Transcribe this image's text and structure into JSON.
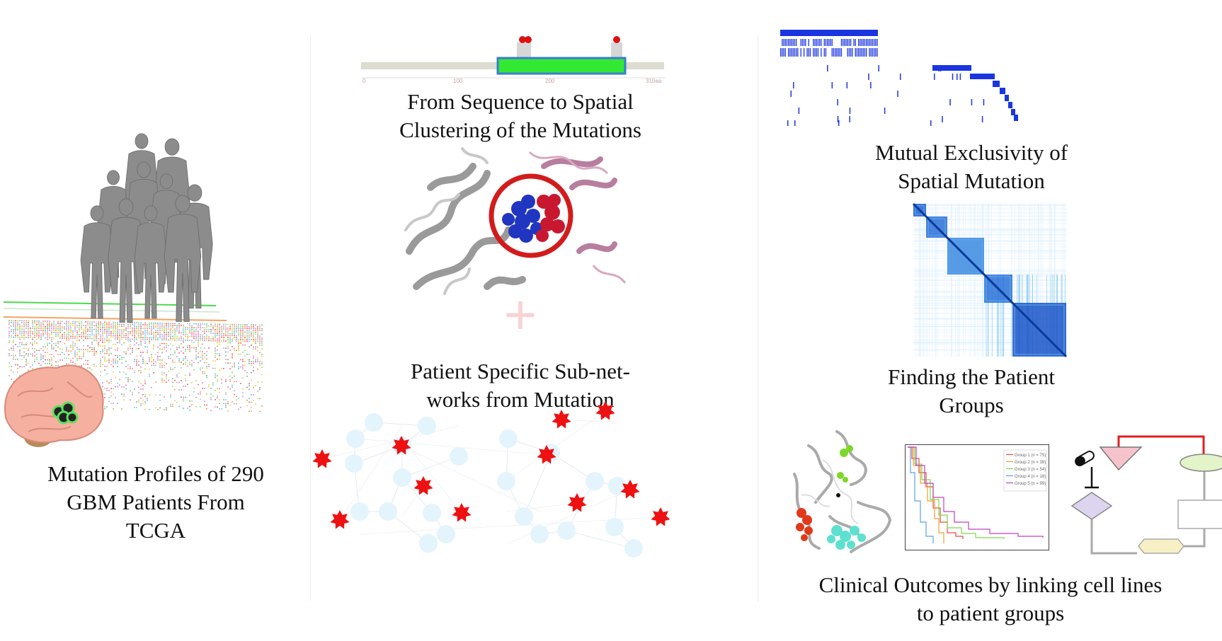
{
  "left_panel": {
    "caption_lines": [
      "Mutation Profiles of 290",
      "GBM Patients From",
      "TCGA"
    ]
  },
  "middle_panel": {
    "top_caption_lines": [
      "From Sequence to Spatial",
      "Clustering of the Mutations"
    ],
    "axis_ticks": [
      "0",
      "100",
      "200",
      "310aa"
    ],
    "plus_symbol": "+",
    "bottom_caption_lines": [
      "Patient Specific Sub-net-",
      "works from Mutation"
    ]
  },
  "right_panel": {
    "caption1_lines": [
      "Mutual Exclusivity of",
      "Spatial Mutation"
    ],
    "caption2_lines": [
      "Finding the Patient",
      "Groups"
    ],
    "km_legend": [
      "Group 1 (n = 75)",
      "Group 2 (n = 39)",
      "Group 3 (n = 54)",
      "Group 4 (n = 18)",
      "Group 5 (n = 99)"
    ],
    "km_colors": [
      "#e64b3c",
      "#f0a030",
      "#7dd84a",
      "#5aa0e8",
      "#c040c0"
    ],
    "caption3_lines": [
      "Clinical Outcomes by linking cell lines",
      "to patient groups"
    ]
  },
  "colors": {
    "domain_fill": "#33e833",
    "domain_border": "#3a7bd5",
    "mutation_star": "#ee1111",
    "network_node": "#e3f4fc",
    "heatmap_blue": "#1f5fcf",
    "oncoprint_blue": "#1a35e0",
    "pathway_red": "#e02020"
  }
}
